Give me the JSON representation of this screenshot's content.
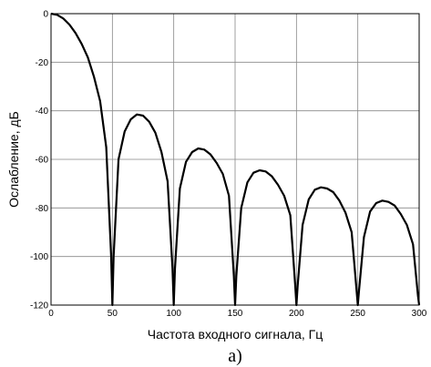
{
  "chart_data": {
    "type": "line",
    "title": "",
    "xlabel": "Частота входного сигнала, Гц",
    "ylabel": "Ослабление, дБ",
    "caption": "а)",
    "xlim": [
      0,
      300
    ],
    "ylim": [
      -120,
      0
    ],
    "x_ticks": [
      0,
      50,
      100,
      150,
      200,
      250,
      300
    ],
    "y_ticks": [
      0,
      -20,
      -40,
      -60,
      -80,
      -100,
      -120
    ],
    "grid": true,
    "legend": "none",
    "line_color": "#000000",
    "series": [
      {
        "x": [
          0,
          5,
          10,
          15,
          20,
          25,
          30,
          35,
          40,
          45,
          49,
          50,
          51,
          55,
          60,
          65,
          70,
          75,
          80,
          85,
          90,
          95,
          99,
          100,
          101,
          105,
          110,
          115,
          120,
          125,
          130,
          135,
          140,
          145,
          149,
          150,
          151,
          155,
          160,
          165,
          170,
          175,
          180,
          185,
          190,
          195,
          199,
          200,
          201,
          205,
          210,
          215,
          220,
          225,
          230,
          235,
          240,
          245,
          249,
          250,
          251,
          255,
          260,
          265,
          270,
          275,
          280,
          285,
          290,
          295,
          299,
          300
        ],
        "y": [
          0,
          -0.5,
          -2,
          -4.5,
          -8,
          -12.5,
          -18,
          -26,
          -36,
          -55,
          -100,
          -120,
          -100,
          -60,
          -48.5,
          -43.5,
          -41.5,
          -42,
          -44.5,
          -49,
          -57,
          -69,
          -105,
          -120,
          -105,
          -72,
          -61,
          -57,
          -55.5,
          -56,
          -58,
          -61.5,
          -66,
          -75,
          -108,
          -120,
          -108,
          -80,
          -69.5,
          -65.5,
          -64.5,
          -65,
          -67,
          -70.5,
          -75,
          -83,
          -112,
          -120,
          -112,
          -87,
          -76.5,
          -72.5,
          -71.5,
          -72,
          -73.5,
          -77,
          -82,
          -90,
          -114,
          -120,
          -114,
          -92,
          -81.5,
          -78,
          -77,
          -77.5,
          -79,
          -82.5,
          -87,
          -95,
          -116,
          -120
        ]
      }
    ]
  }
}
